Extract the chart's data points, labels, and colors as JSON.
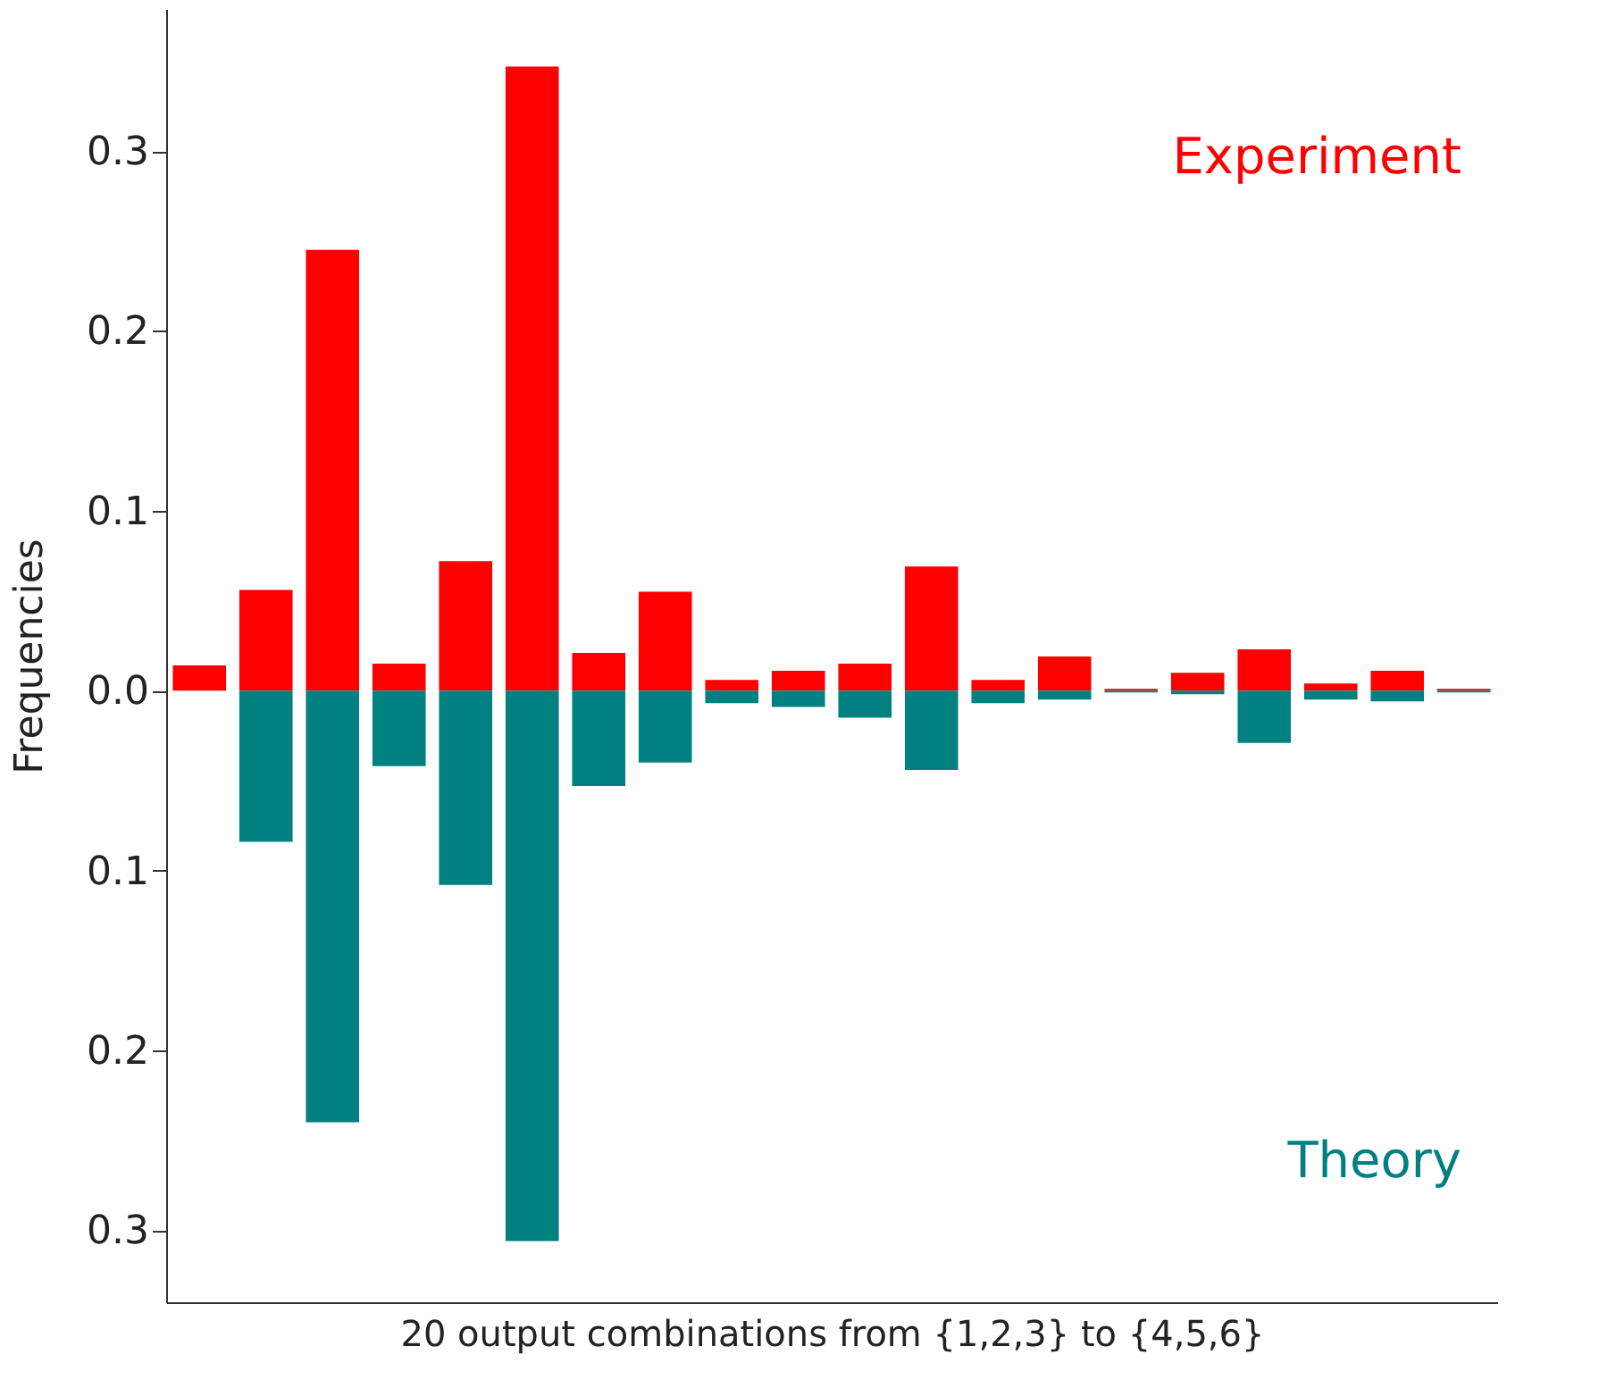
{
  "chart_data": {
    "type": "bar",
    "stacked": true,
    "xlabel": "20 output combinations from {1,2,3} to {4,5,6}",
    "ylabel": "Frequencies",
    "categories": [
      null,
      null,
      null,
      null,
      null,
      null,
      null,
      null,
      null,
      null,
      null,
      null,
      null,
      null,
      null,
      null,
      null,
      null,
      null,
      null
    ],
    "series": [
      {
        "name": "Experiment",
        "color": "#ff0000",
        "values": [
          0.014,
          0.056,
          0.245,
          0.015,
          0.072,
          0.347,
          0.021,
          0.055,
          0.006,
          0.011,
          0.015,
          0.069,
          0.006,
          0.019,
          0.001,
          0.01,
          0.023,
          0.004,
          0.011,
          0.001
        ]
      },
      {
        "name": "Theory",
        "color": "#008080",
        "values": [
          null,
          -0.084,
          -0.24,
          -0.042,
          -0.108,
          -0.306,
          -0.053,
          -0.04,
          -0.007,
          -0.009,
          -0.015,
          -0.044,
          -0.007,
          -0.005,
          -0.001,
          -0.002,
          -0.029,
          -0.005,
          -0.006,
          -0.001
        ]
      }
    ],
    "ylim": [
      -0.34,
      0.379
    ],
    "yticks": [
      {
        "value": 0.3,
        "label": "0.3"
      },
      {
        "value": 0.2,
        "label": "0.2"
      },
      {
        "value": 0.1,
        "label": "0.1"
      },
      {
        "value": 0.0,
        "label": "0.0"
      },
      {
        "value": -0.1,
        "label": "0.1"
      },
      {
        "value": -0.2,
        "label": "0.2"
      },
      {
        "value": -0.3,
        "label": "0.3"
      }
    ],
    "tick_labels": "y",
    "grid": false,
    "legend": false
  }
}
